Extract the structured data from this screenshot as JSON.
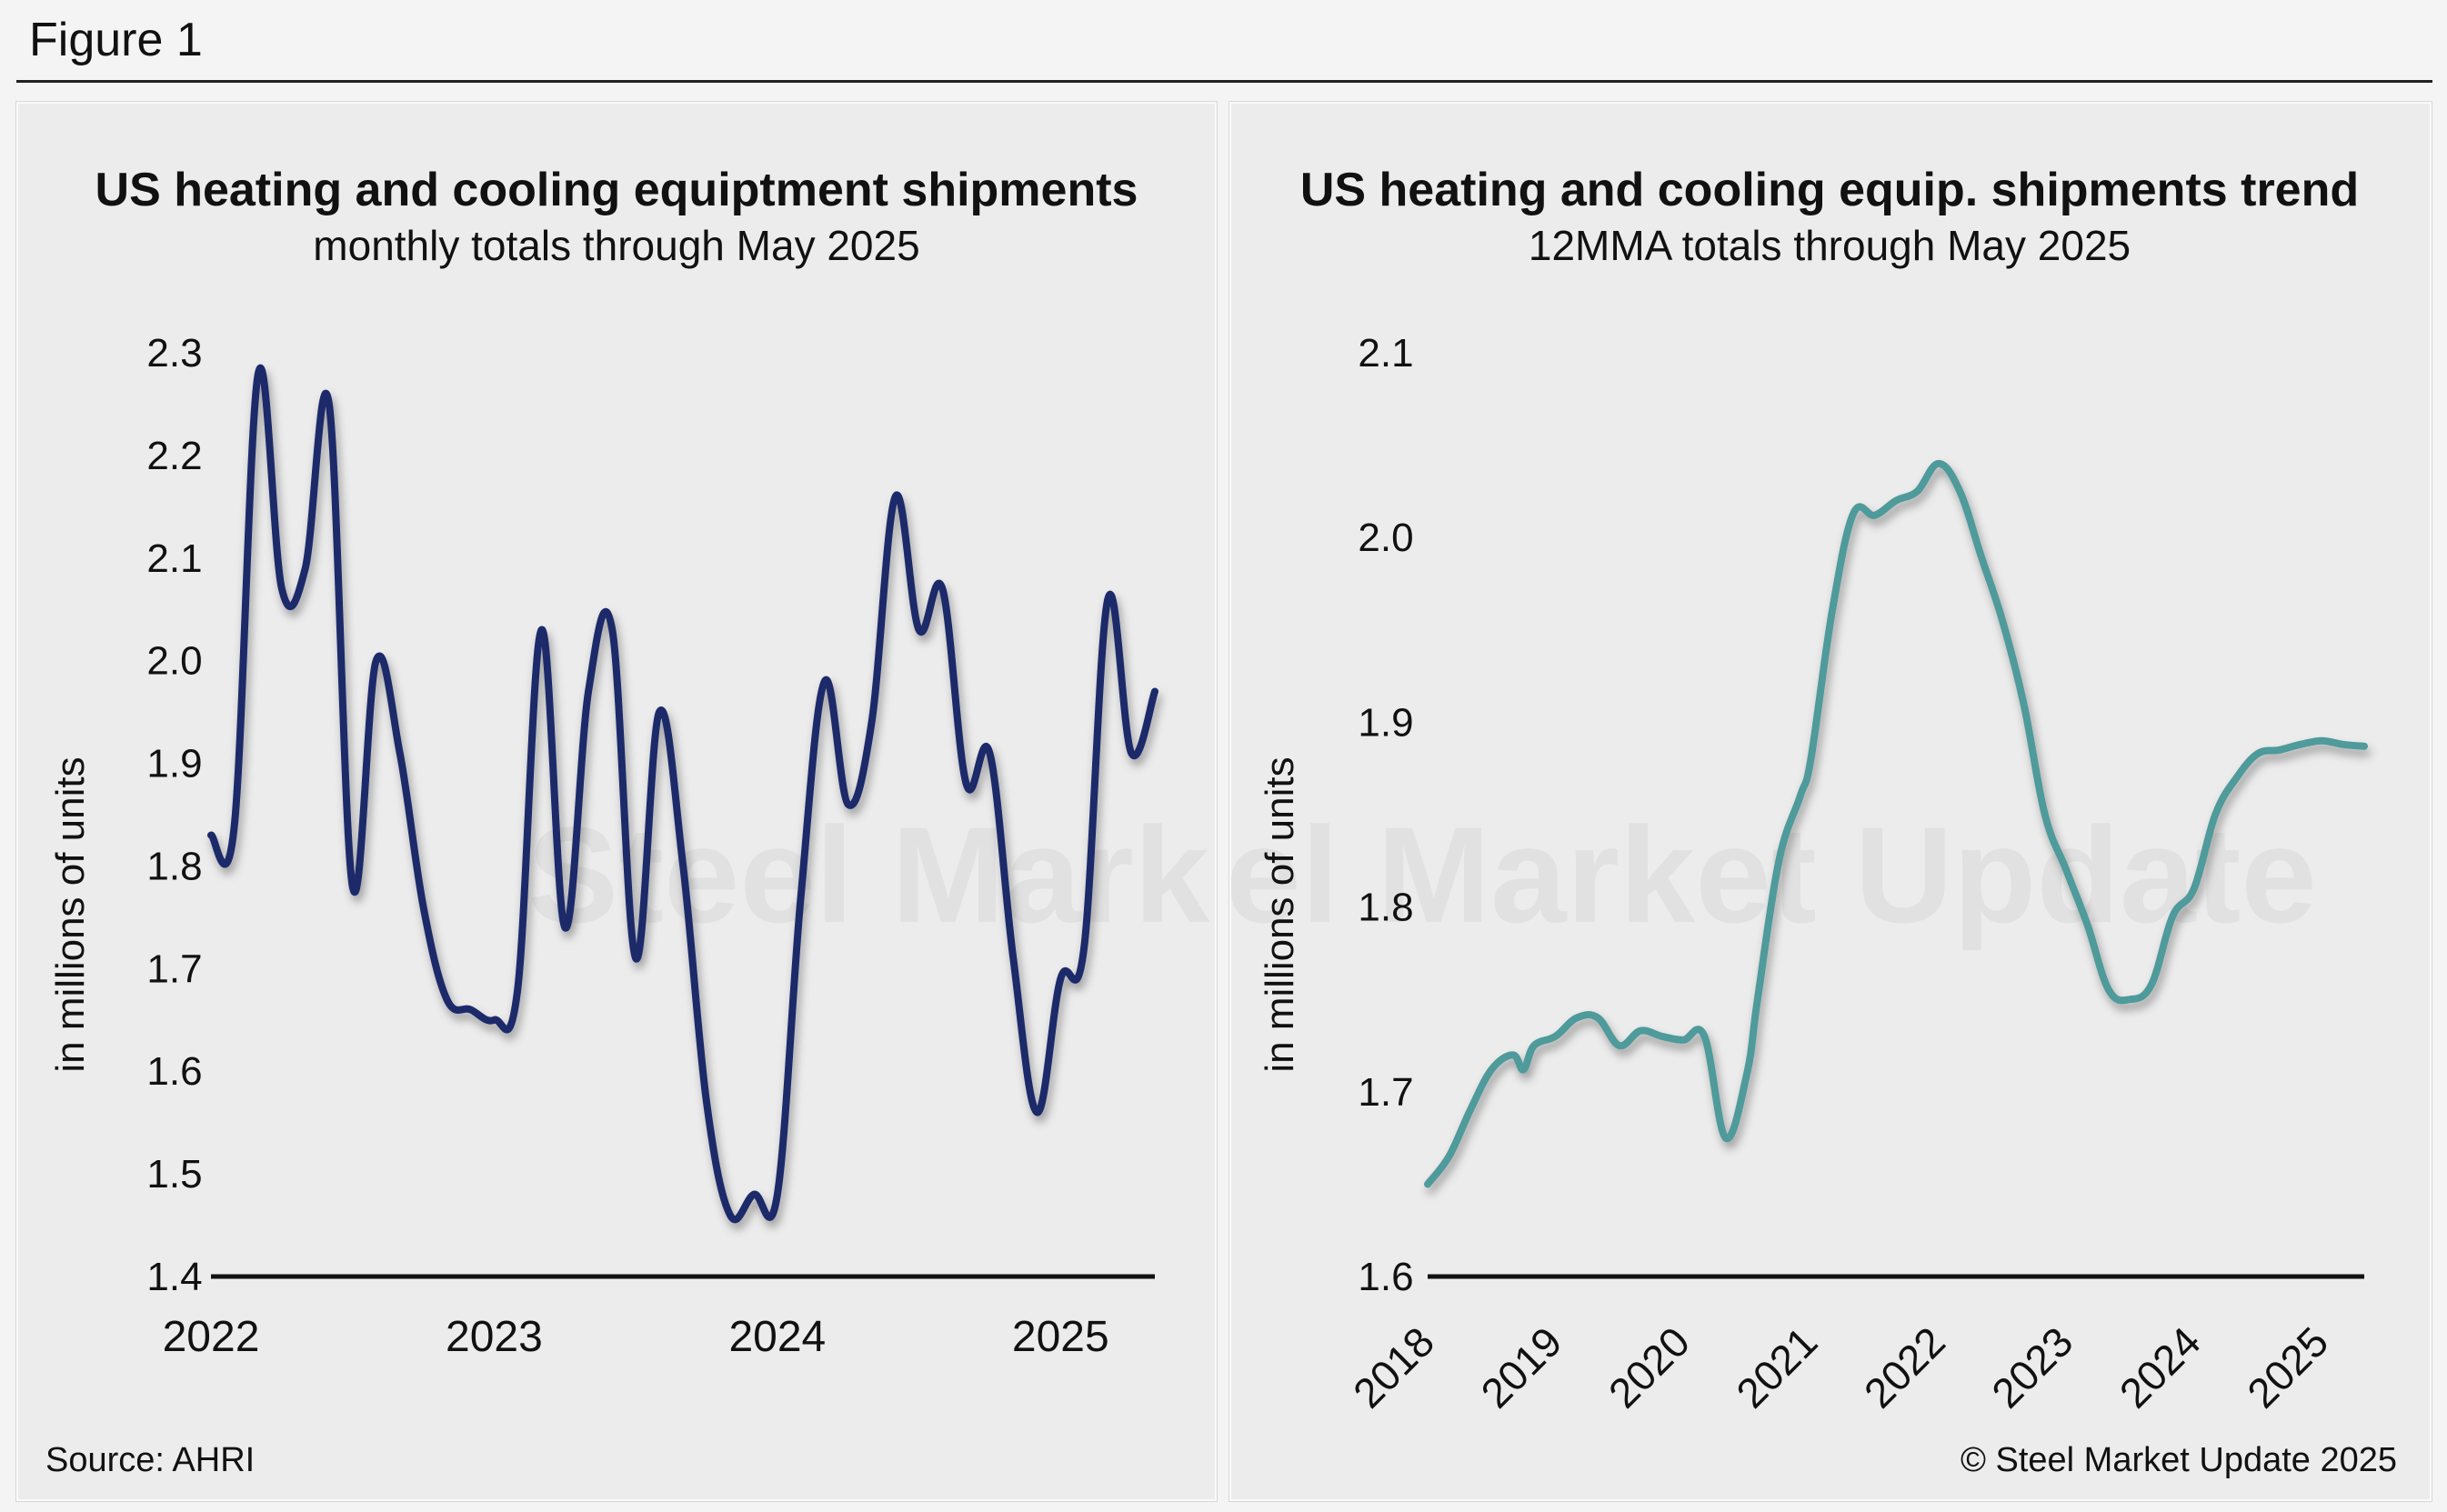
{
  "figure_label": "Figure 1",
  "source": "Source: AHRI",
  "copyright": "© Steel Market Update 2025",
  "watermark": "Steel Market Update",
  "colors": {
    "left_series": "#1f2a6b",
    "right_series": "#4f9a9b",
    "axis": "#111111",
    "panel_bg": "#ececec"
  },
  "chart_data": [
    {
      "type": "line",
      "title": "US heating and cooling equiptment shipments",
      "subtitle": "monthly totals through May 2025",
      "ylabel": "in millions of units",
      "xlabel": "",
      "ylim": [
        1.4,
        2.3
      ],
      "xlim": [
        2022.0,
        2025.333
      ],
      "yticks": [
        "2.3",
        "2.2",
        "2.1",
        "2.0",
        "1.9",
        "1.8",
        "1.7",
        "1.6",
        "1.5",
        "1.4"
      ],
      "xticks": [
        "2022",
        "2023",
        "2024",
        "2025"
      ],
      "grid": false,
      "legend": "none",
      "series": [
        {
          "x": [
            2022.0,
            2022.083,
            2022.167,
            2022.25,
            2022.333,
            2022.417,
            2022.5,
            2022.583,
            2022.667,
            2022.75,
            2022.833,
            2022.917,
            2023.0,
            2023.083,
            2023.167,
            2023.25,
            2023.333,
            2023.417,
            2023.5,
            2023.583,
            2023.667,
            2023.75,
            2023.833,
            2023.917,
            2024.0,
            2024.083,
            2024.167,
            2024.25,
            2024.333,
            2024.417,
            2024.5,
            2024.583,
            2024.667,
            2024.75,
            2024.833,
            2024.917,
            2025.0,
            2025.083,
            2025.167,
            2025.25,
            2025.333
          ],
          "values": [
            1.83,
            1.84,
            2.28,
            2.07,
            2.09,
            2.25,
            1.78,
            2.0,
            1.91,
            1.76,
            1.67,
            1.66,
            1.65,
            1.68,
            2.03,
            1.74,
            1.97,
            2.03,
            1.71,
            1.95,
            1.8,
            1.57,
            1.46,
            1.48,
            1.48,
            1.77,
            1.98,
            1.86,
            1.94,
            2.16,
            2.03,
            2.07,
            1.88,
            1.91,
            1.71,
            1.56,
            1.69,
            1.72,
            2.06,
            1.91,
            1.97
          ]
        }
      ]
    },
    {
      "type": "line",
      "title": "US heating and cooling equip. shipments trend",
      "subtitle": "12MMA totals through May 2025",
      "ylabel": "in millions of units",
      "xlabel": "",
      "ylim": [
        1.6,
        2.1
      ],
      "xlim": [
        2018.0,
        2025.333
      ],
      "yticks": [
        "2.1",
        "2.0",
        "1.9",
        "1.8",
        "1.7",
        "1.6"
      ],
      "xticks": [
        "2018",
        "2019",
        "2020",
        "2021",
        "2022",
        "2023",
        "2024",
        "2025"
      ],
      "grid": false,
      "legend": "none",
      "series": [
        {
          "x": [
            2018.0,
            2018.167,
            2018.333,
            2018.5,
            2018.667,
            2018.75,
            2018.833,
            2019.0,
            2019.167,
            2019.333,
            2019.5,
            2019.667,
            2019.833,
            2020.0,
            2020.167,
            2020.333,
            2020.5,
            2020.583,
            2020.75,
            2020.917,
            2021.0,
            2021.167,
            2021.333,
            2021.5,
            2021.667,
            2021.833,
            2022.0,
            2022.167,
            2022.333,
            2022.5,
            2022.667,
            2022.833,
            2023.0,
            2023.167,
            2023.333,
            2023.5,
            2023.667,
            2023.833,
            2024.0,
            2024.167,
            2024.333,
            2024.5,
            2024.667,
            2024.833,
            2025.0,
            2025.167,
            2025.333
          ],
          "values": [
            1.65,
            1.665,
            1.69,
            1.712,
            1.72,
            1.712,
            1.725,
            1.73,
            1.74,
            1.74,
            1.725,
            1.733,
            1.73,
            1.728,
            1.73,
            1.675,
            1.71,
            1.75,
            1.825,
            1.86,
            1.88,
            1.96,
            2.013,
            2.012,
            2.02,
            2.025,
            2.04,
            2.025,
            1.99,
            1.955,
            1.91,
            1.85,
            1.82,
            1.79,
            1.755,
            1.75,
            1.758,
            1.795,
            1.81,
            1.85,
            1.87,
            1.883,
            1.885,
            1.888,
            1.89,
            1.888,
            1.887
          ]
        }
      ]
    }
  ]
}
